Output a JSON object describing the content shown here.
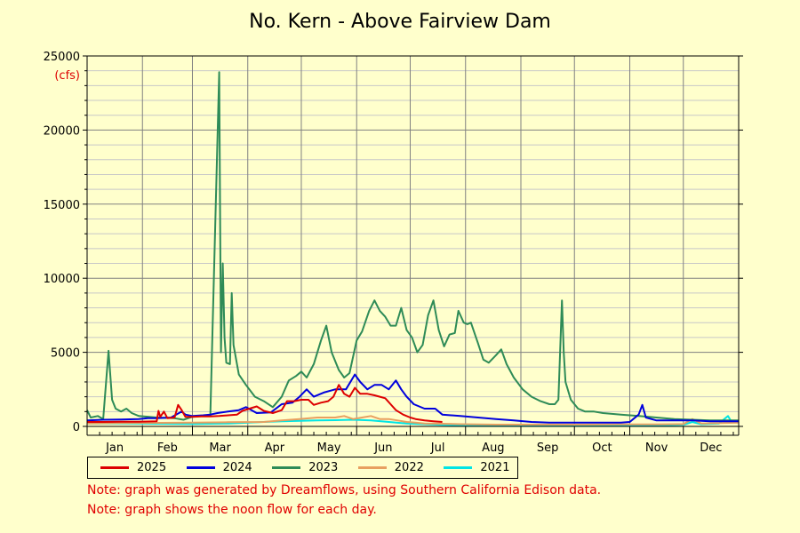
{
  "chart_data": {
    "type": "line",
    "title": "No. Kern - Above Fairview Dam",
    "ylabel": "(cfs)",
    "xlabel": "",
    "x_tick_labels": [
      "Jan",
      "Feb",
      "Mar",
      "Apr",
      "May",
      "Jun",
      "Jul",
      "Aug",
      "Sep",
      "Oct",
      "Nov",
      "Dec"
    ],
    "y_ticks": [
      0,
      5000,
      10000,
      15000,
      20000,
      25000
    ],
    "ylim": [
      0,
      25000
    ],
    "xlim": [
      1,
      366
    ],
    "x_unit": "day of year",
    "grid": true,
    "legend_position": "bottom",
    "series": [
      {
        "name": "2025",
        "color": "#dd0000",
        "points": [
          [
            1,
            300
          ],
          [
            10,
            300
          ],
          [
            20,
            310
          ],
          [
            30,
            320
          ],
          [
            40,
            350
          ],
          [
            41,
            1050
          ],
          [
            42,
            650
          ],
          [
            44,
            1000
          ],
          [
            46,
            550
          ],
          [
            50,
            600
          ],
          [
            52,
            1450
          ],
          [
            54,
            1100
          ],
          [
            56,
            650
          ],
          [
            60,
            650
          ],
          [
            65,
            680
          ],
          [
            70,
            680
          ],
          [
            75,
            700
          ],
          [
            80,
            750
          ],
          [
            85,
            800
          ],
          [
            88,
            1050
          ],
          [
            92,
            1200
          ],
          [
            96,
            1350
          ],
          [
            100,
            1050
          ],
          [
            105,
            900
          ],
          [
            110,
            1100
          ],
          [
            113,
            1700
          ],
          [
            117,
            1700
          ],
          [
            121,
            1800
          ],
          [
            125,
            1800
          ],
          [
            128,
            1450
          ],
          [
            132,
            1600
          ],
          [
            136,
            1700
          ],
          [
            139,
            2000
          ],
          [
            142,
            2800
          ],
          [
            145,
            2200
          ],
          [
            148,
            2000
          ],
          [
            151,
            2600
          ],
          [
            154,
            2200
          ],
          [
            158,
            2200
          ],
          [
            162,
            2100
          ],
          [
            165,
            2000
          ],
          [
            168,
            1900
          ],
          [
            171,
            1500
          ],
          [
            174,
            1100
          ],
          [
            178,
            800
          ],
          [
            182,
            600
          ],
          [
            185,
            500
          ],
          [
            190,
            400
          ],
          [
            195,
            350
          ],
          [
            200,
            300
          ]
        ]
      },
      {
        "name": "2024",
        "color": "#0000dd",
        "points": [
          [
            1,
            400
          ],
          [
            10,
            450
          ],
          [
            20,
            470
          ],
          [
            30,
            500
          ],
          [
            35,
            550
          ],
          [
            40,
            550
          ],
          [
            48,
            600
          ],
          [
            54,
            1000
          ],
          [
            56,
            800
          ],
          [
            60,
            700
          ],
          [
            66,
            750
          ],
          [
            70,
            800
          ],
          [
            74,
            900
          ],
          [
            80,
            1000
          ],
          [
            86,
            1100
          ],
          [
            90,
            1300
          ],
          [
            96,
            900
          ],
          [
            104,
            950
          ],
          [
            110,
            1500
          ],
          [
            116,
            1600
          ],
          [
            120,
            2000
          ],
          [
            124,
            2500
          ],
          [
            128,
            2000
          ],
          [
            134,
            2300
          ],
          [
            140,
            2500
          ],
          [
            146,
            2500
          ],
          [
            151,
            3500
          ],
          [
            154,
            3000
          ],
          [
            158,
            2500
          ],
          [
            162,
            2800
          ],
          [
            166,
            2800
          ],
          [
            170,
            2500
          ],
          [
            174,
            3100
          ],
          [
            177,
            2500
          ],
          [
            180,
            2000
          ],
          [
            184,
            1500
          ],
          [
            190,
            1200
          ],
          [
            196,
            1200
          ],
          [
            200,
            800
          ],
          [
            210,
            700
          ],
          [
            220,
            600
          ],
          [
            230,
            500
          ],
          [
            240,
            400
          ],
          [
            250,
            300
          ],
          [
            260,
            250
          ],
          [
            270,
            250
          ],
          [
            280,
            250
          ],
          [
            290,
            250
          ],
          [
            300,
            260
          ],
          [
            305,
            300
          ],
          [
            310,
            800
          ],
          [
            312,
            1450
          ],
          [
            314,
            600
          ],
          [
            320,
            400
          ],
          [
            330,
            400
          ],
          [
            340,
            400
          ],
          [
            350,
            350
          ],
          [
            366,
            350
          ]
        ]
      },
      {
        "name": "2023",
        "color": "#2e8b57",
        "points": [
          [
            1,
            1100
          ],
          [
            3,
            600
          ],
          [
            7,
            700
          ],
          [
            10,
            500
          ],
          [
            13,
            5100
          ],
          [
            15,
            1800
          ],
          [
            17,
            1200
          ],
          [
            20,
            1000
          ],
          [
            23,
            1200
          ],
          [
            26,
            900
          ],
          [
            30,
            700
          ],
          [
            40,
            600
          ],
          [
            50,
            550
          ],
          [
            55,
            450
          ],
          [
            60,
            650
          ],
          [
            65,
            700
          ],
          [
            70,
            700
          ],
          [
            75,
            23900
          ],
          [
            76,
            5000
          ],
          [
            77,
            11000
          ],
          [
            78,
            6000
          ],
          [
            79,
            4300
          ],
          [
            81,
            4200
          ],
          [
            82,
            9000
          ],
          [
            83,
            5500
          ],
          [
            86,
            3500
          ],
          [
            90,
            2800
          ],
          [
            95,
            2000
          ],
          [
            100,
            1700
          ],
          [
            105,
            1300
          ],
          [
            110,
            2000
          ],
          [
            114,
            3100
          ],
          [
            118,
            3400
          ],
          [
            121,
            3700
          ],
          [
            124,
            3300
          ],
          [
            128,
            4200
          ],
          [
            132,
            5800
          ],
          [
            135,
            6800
          ],
          [
            138,
            5000
          ],
          [
            142,
            3800
          ],
          [
            145,
            3300
          ],
          [
            148,
            3600
          ],
          [
            152,
            5800
          ],
          [
            155,
            6400
          ],
          [
            159,
            7800
          ],
          [
            162,
            8500
          ],
          [
            165,
            7800
          ],
          [
            168,
            7400
          ],
          [
            171,
            6800
          ],
          [
            174,
            6800
          ],
          [
            177,
            8000
          ],
          [
            180,
            6500
          ],
          [
            183,
            6000
          ],
          [
            186,
            5000
          ],
          [
            189,
            5500
          ],
          [
            192,
            7500
          ],
          [
            195,
            8500
          ],
          [
            198,
            6500
          ],
          [
            201,
            5400
          ],
          [
            204,
            6200
          ],
          [
            207,
            6300
          ],
          [
            209,
            7800
          ],
          [
            212,
            7000
          ],
          [
            214,
            6900
          ],
          [
            216,
            7000
          ],
          [
            220,
            5600
          ],
          [
            223,
            4500
          ],
          [
            226,
            4300
          ],
          [
            230,
            4800
          ],
          [
            233,
            5200
          ],
          [
            236,
            4200
          ],
          [
            240,
            3300
          ],
          [
            245,
            2500
          ],
          [
            250,
            2000
          ],
          [
            255,
            1700
          ],
          [
            260,
            1500
          ],
          [
            263,
            1500
          ],
          [
            265,
            1800
          ],
          [
            267,
            8500
          ],
          [
            268,
            5000
          ],
          [
            269,
            3000
          ],
          [
            272,
            1800
          ],
          [
            276,
            1200
          ],
          [
            280,
            1000
          ],
          [
            285,
            1000
          ],
          [
            290,
            900
          ],
          [
            300,
            800
          ],
          [
            310,
            700
          ],
          [
            320,
            600
          ],
          [
            330,
            500
          ],
          [
            340,
            450
          ],
          [
            350,
            400
          ],
          [
            366,
            400
          ]
        ]
      },
      {
        "name": "2022",
        "color": "#e8a060",
        "points": [
          [
            1,
            200
          ],
          [
            20,
            220
          ],
          [
            40,
            240
          ],
          [
            60,
            260
          ],
          [
            80,
            280
          ],
          [
            100,
            300
          ],
          [
            110,
            400
          ],
          [
            120,
            500
          ],
          [
            130,
            600
          ],
          [
            140,
            600
          ],
          [
            145,
            700
          ],
          [
            150,
            500
          ],
          [
            155,
            600
          ],
          [
            160,
            700
          ],
          [
            165,
            500
          ],
          [
            170,
            500
          ],
          [
            175,
            400
          ],
          [
            180,
            300
          ],
          [
            185,
            250
          ],
          [
            190,
            200
          ],
          [
            200,
            180
          ],
          [
            210,
            150
          ],
          [
            220,
            130
          ],
          [
            230,
            120
          ],
          [
            240,
            120
          ],
          [
            250,
            120
          ],
          [
            260,
            120
          ],
          [
            280,
            120
          ],
          [
            300,
            130
          ],
          [
            320,
            140
          ],
          [
            335,
            150
          ],
          [
            340,
            500
          ],
          [
            345,
            200
          ],
          [
            366,
            250
          ]
        ]
      },
      {
        "name": "2021",
        "color": "#00e5e5",
        "points": [
          [
            1,
            200
          ],
          [
            20,
            200
          ],
          [
            40,
            180
          ],
          [
            60,
            170
          ],
          [
            80,
            200
          ],
          [
            100,
            300
          ],
          [
            110,
            350
          ],
          [
            120,
            380
          ],
          [
            130,
            400
          ],
          [
            140,
            420
          ],
          [
            150,
            450
          ],
          [
            160,
            400
          ],
          [
            170,
            300
          ],
          [
            180,
            200
          ],
          [
            190,
            150
          ],
          [
            200,
            100
          ],
          [
            210,
            80
          ],
          [
            220,
            60
          ],
          [
            240,
            50
          ],
          [
            260,
            50
          ],
          [
            280,
            50
          ],
          [
            300,
            60
          ],
          [
            320,
            80
          ],
          [
            335,
            100
          ],
          [
            340,
            300
          ],
          [
            345,
            150
          ],
          [
            355,
            200
          ],
          [
            360,
            700
          ],
          [
            362,
            300
          ],
          [
            366,
            300
          ]
        ]
      }
    ]
  },
  "notes": [
    "Note: graph was generated by Dreamflows, using Southern California Edison data.",
    "Note: graph shows the noon flow for each day."
  ]
}
